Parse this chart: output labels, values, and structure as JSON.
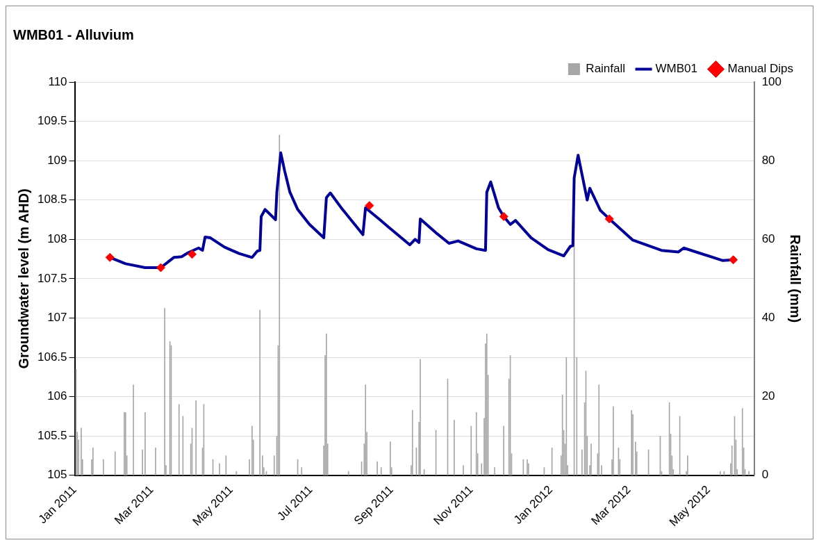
{
  "chart_data": {
    "type": "line",
    "title": "WMB01 - Alluvium",
    "ylabel": "Groundwater level (m AHD)",
    "y2label": "Rainfall (mm)",
    "xlim": [
      "2011-01-01",
      "2012-06-05"
    ],
    "xticks": [
      {
        "value": "2011-01-01",
        "label": "Jan 2011"
      },
      {
        "value": "2011-03-01",
        "label": "Mar 2011"
      },
      {
        "value": "2011-05-01",
        "label": "May 2011"
      },
      {
        "value": "2011-07-01",
        "label": "Jul 2011"
      },
      {
        "value": "2011-09-01",
        "label": "Sep 2011"
      },
      {
        "value": "2011-11-01",
        "label": "Nov 2011"
      },
      {
        "value": "2012-01-01",
        "label": "Jan 2012"
      },
      {
        "value": "2012-03-01",
        "label": "Mar 2012"
      },
      {
        "value": "2012-05-01",
        "label": "May 2012"
      }
    ],
    "ylim": [
      105,
      110
    ],
    "yticks": [
      105,
      105.5,
      106,
      106.5,
      107,
      107.5,
      108,
      108.5,
      109,
      109.5,
      110
    ],
    "y2lim": [
      0,
      100
    ],
    "y2ticks": [
      0,
      20,
      40,
      60,
      80,
      100
    ],
    "grid": "y",
    "legend": "top right",
    "series": [
      {
        "name": "Rainfall",
        "type": "bar",
        "axis": "y2",
        "color": "#a6a6a6",
        "x": [
          "2011-01-02",
          "2011-01-03",
          "2011-01-04",
          "2011-01-06",
          "2011-01-07",
          "2011-01-14",
          "2011-01-15",
          "2011-01-23",
          "2011-02-01",
          "2011-02-08",
          "2011-02-09",
          "2011-02-10",
          "2011-02-15",
          "2011-02-22",
          "2011-02-24",
          "2011-03-04",
          "2011-03-11",
          "2011-03-12",
          "2011-03-15",
          "2011-03-16",
          "2011-03-22",
          "2011-03-25",
          "2011-03-31",
          "2011-04-01",
          "2011-04-04",
          "2011-04-09",
          "2011-04-10",
          "2011-04-17",
          "2011-04-22",
          "2011-04-27",
          "2011-05-05",
          "2011-05-15",
          "2011-05-17",
          "2011-05-18",
          "2011-05-23",
          "2011-05-25",
          "2011-05-26",
          "2011-05-28",
          "2011-06-03",
          "2011-06-05",
          "2011-06-06",
          "2011-06-07",
          "2011-06-21",
          "2011-06-24",
          "2011-07-11",
          "2011-07-12",
          "2011-07-13",
          "2011-07-14",
          "2011-07-30",
          "2011-08-09",
          "2011-08-11",
          "2011-08-12",
          "2011-08-13",
          "2011-08-21",
          "2011-08-24",
          "2011-08-31",
          "2011-09-01",
          "2011-09-16",
          "2011-09-17",
          "2011-09-20",
          "2011-09-22",
          "2011-09-23",
          "2011-09-26",
          "2011-10-05",
          "2011-10-14",
          "2011-10-19",
          "2011-10-26",
          "2011-11-01",
          "2011-11-05",
          "2011-11-06",
          "2011-11-09",
          "2011-11-11",
          "2011-11-12",
          "2011-11-13",
          "2011-11-14",
          "2011-11-19",
          "2011-11-26",
          "2011-11-30",
          "2011-12-01",
          "2011-12-02",
          "2011-12-11",
          "2011-12-14",
          "2011-12-15",
          "2011-12-27",
          "2012-01-02",
          "2012-01-09",
          "2012-01-10",
          "2012-01-11",
          "2012-01-12",
          "2012-01-13",
          "2012-01-14",
          "2012-01-19",
          "2012-01-21",
          "2012-01-25",
          "2012-01-27",
          "2012-01-28",
          "2012-01-29",
          "2012-01-31",
          "2012-02-01",
          "2012-02-06",
          "2012-02-07",
          "2012-02-09",
          "2012-02-17",
          "2012-02-18",
          "2012-02-22",
          "2012-02-23",
          "2012-03-03",
          "2012-03-04",
          "2012-03-06",
          "2012-03-07",
          "2012-03-16",
          "2012-03-25",
          "2012-03-26",
          "2012-04-01",
          "2012-04-02",
          "2012-04-03",
          "2012-04-04",
          "2012-04-09",
          "2012-04-14",
          "2012-04-15",
          "2012-05-10",
          "2012-05-13",
          "2012-05-18",
          "2012-05-19",
          "2012-05-21",
          "2012-05-22",
          "2012-05-23",
          "2012-05-27",
          "2012-05-28",
          "2012-05-29",
          "2012-06-01"
        ],
        "values": [
          27,
          11,
          9,
          12,
          4,
          4,
          7,
          4,
          6,
          16,
          16,
          5,
          23,
          6.5,
          16,
          7,
          42.5,
          2.5,
          34,
          33,
          18,
          15,
          8,
          12,
          19,
          7,
          18,
          4,
          3,
          5,
          1,
          4,
          12.5,
          9,
          42,
          5,
          2,
          1,
          5,
          10,
          33,
          86.5,
          4,
          2,
          7.5,
          30.5,
          36,
          8,
          1,
          3.5,
          8,
          23,
          11,
          3.5,
          2,
          8.5,
          2,
          2.5,
          16.5,
          7,
          13.5,
          29.5,
          1.5,
          11.5,
          24.5,
          14,
          2.5,
          12.5,
          16,
          5.5,
          3,
          14.5,
          33.5,
          36,
          25.5,
          2,
          12.5,
          24.5,
          30.5,
          5.5,
          4,
          4,
          3,
          2,
          7,
          5,
          20.5,
          11.5,
          8,
          30,
          2.5,
          65,
          30,
          6.5,
          18.5,
          26.5,
          10,
          2.5,
          8,
          5.5,
          23,
          2.5,
          4,
          17.5,
          7,
          4,
          16.5,
          15.5,
          8.5,
          6,
          6.5,
          10,
          1,
          18.5,
          10.5,
          5,
          1.5,
          15,
          1,
          5,
          1,
          1,
          3,
          7.5,
          15,
          9,
          1.5,
          17,
          7,
          1.5,
          1
        ]
      },
      {
        "name": "WMB01",
        "color": "#000099",
        "marker": "none",
        "line_style": "solid",
        "x": [
          "2011-01-28",
          "2011-02-09",
          "2011-02-24",
          "2011-03-08",
          "2011-03-18",
          "2011-03-24",
          "2011-03-29",
          "2011-04-06",
          "2011-04-09",
          "2011-04-11",
          "2011-04-15",
          "2011-04-26",
          "2011-05-07",
          "2011-05-17",
          "2011-05-21",
          "2011-05-23",
          "2011-05-24",
          "2011-05-27",
          "2011-06-04",
          "2011-06-05",
          "2011-06-08",
          "2011-06-11",
          "2011-06-15",
          "2011-06-21",
          "2011-06-30",
          "2011-07-11",
          "2011-07-13",
          "2011-07-16",
          "2011-07-24",
          "2011-08-10",
          "2011-08-12",
          "2011-08-23",
          "2011-08-30",
          "2011-09-15",
          "2011-09-19",
          "2011-09-22",
          "2011-09-23",
          "2011-10-06",
          "2011-10-15",
          "2011-10-22",
          "2011-11-05",
          "2011-11-12",
          "2011-11-13",
          "2011-11-16",
          "2011-11-22",
          "2011-11-26",
          "2011-12-01",
          "2011-12-05",
          "2011-12-17",
          "2011-12-30",
          "2012-01-11",
          "2012-01-16",
          "2012-01-18",
          "2012-01-19",
          "2012-01-22",
          "2012-01-29",
          "2012-01-31",
          "2012-02-08",
          "2012-02-15",
          "2012-03-04",
          "2012-03-26",
          "2012-04-08",
          "2012-04-12",
          "2012-05-12",
          "2012-05-20"
        ],
        "values": [
          107.77,
          107.69,
          107.64,
          107.64,
          107.77,
          107.78,
          107.83,
          107.89,
          107.86,
          108.03,
          108.02,
          107.9,
          107.82,
          107.77,
          107.85,
          107.86,
          108.29,
          108.38,
          108.25,
          108.6,
          109.1,
          108.87,
          108.6,
          108.38,
          108.19,
          108.02,
          108.53,
          108.59,
          108.41,
          108.06,
          108.4,
          108.25,
          108.15,
          107.93,
          108,
          107.96,
          108.26,
          108.07,
          107.95,
          107.98,
          107.88,
          107.86,
          108.6,
          108.73,
          108.4,
          108.29,
          108.19,
          108.24,
          108.02,
          107.87,
          107.79,
          107.91,
          107.92,
          108.78,
          109.07,
          108.5,
          108.65,
          108.37,
          108.26,
          107.99,
          107.86,
          107.84,
          107.89,
          107.73,
          107.74
        ]
      },
      {
        "name": "Manual Dips",
        "type": "scatter",
        "color": "#ff0000",
        "marker": "diamond",
        "x": [
          "2011-01-28",
          "2011-03-08",
          "2011-04-01",
          "2011-08-15",
          "2011-11-26",
          "2012-02-15",
          "2012-05-20"
        ],
        "values": [
          107.77,
          107.64,
          107.81,
          108.43,
          108.29,
          108.26,
          107.74
        ]
      }
    ]
  }
}
